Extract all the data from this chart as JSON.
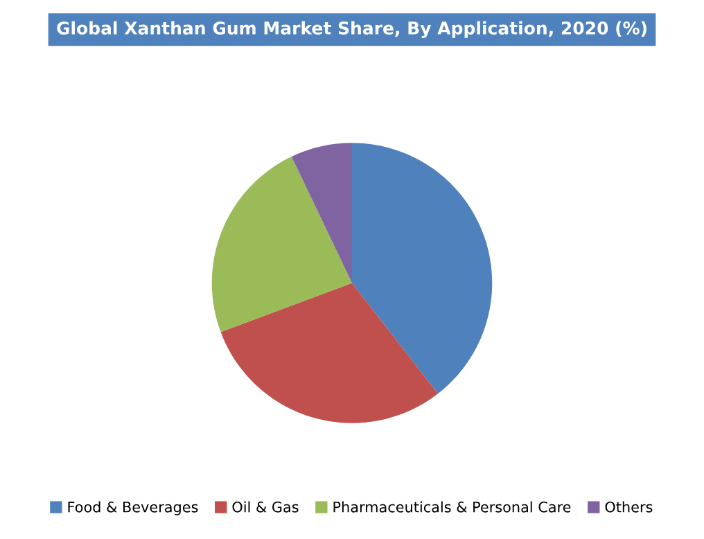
{
  "chart_data": {
    "type": "pie",
    "title": "Global Xanthan Gum Market Share, By Application, 2020 (%)",
    "categories": [
      "Food & Beverages",
      "Oil & Gas",
      "Pharmaceuticals & Personal Care",
      "Others"
    ],
    "values": [
      39.5,
      29.8,
      23.6,
      7.1
    ],
    "colors": [
      "#4f81bd",
      "#c0504d",
      "#9bbb59",
      "#8064a2"
    ],
    "legend": "bottom"
  }
}
